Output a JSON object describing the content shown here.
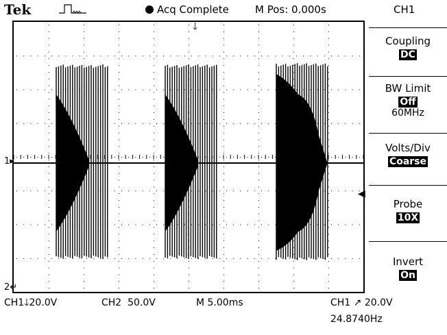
{
  "header": {
    "brand": "Tek",
    "trigger_icon": "square-pulse-icon",
    "status": "Acq Complete",
    "mpos_label": "M Pos: 0.000s",
    "channel": "CH1"
  },
  "menu": [
    {
      "label": "Coupling",
      "value": "DC"
    },
    {
      "label": "BW Limit",
      "value": "Off",
      "sub": "60MHz"
    },
    {
      "label": "Volts/Div",
      "value": "Coarse"
    },
    {
      "label": "Probe",
      "value": "10X"
    },
    {
      "label": "Invert",
      "value": "On"
    }
  ],
  "footer": {
    "ch1_label": "CH1",
    "ch1_scale": "20.0V",
    "ch2_label": "CH2",
    "ch2_scale": "50.0V",
    "timebase": "M 5.00ms",
    "trigger_channel": "CH1",
    "trigger_level": "20.0V",
    "frequency": "24.8740Hz"
  },
  "markers": {
    "ch1": "1",
    "ch2": "2"
  },
  "colors": {
    "trace": "#000000",
    "grid": "#000000",
    "background": "#ffffff"
  }
}
